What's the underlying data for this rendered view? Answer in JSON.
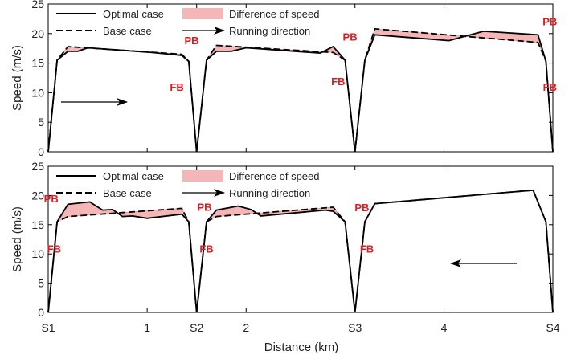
{
  "figure": {
    "xlabel": "Distance (km)",
    "x_ticks": [
      {
        "value": 0,
        "label": "S1"
      },
      {
        "value": 1,
        "label": "1"
      },
      {
        "value": 1.5,
        "label": "S2"
      },
      {
        "value": 2,
        "label": "2"
      },
      {
        "value": 3.1,
        "label": "S3"
      },
      {
        "value": 4,
        "label": "4"
      },
      {
        "value": 5.1,
        "label": "S4"
      }
    ],
    "colors": {
      "fill": "#f4b6b6",
      "fill_stroke": "#e99a9a",
      "label": "#e8181f",
      "line": "#000000"
    }
  },
  "chart_data": [
    {
      "type": "line",
      "ylabel": "Speed (m/s)",
      "xlim": [
        0,
        5.1
      ],
      "ylim": [
        0,
        25
      ],
      "y_ticks": [
        0,
        5,
        10,
        15,
        20,
        25
      ],
      "legend": {
        "position": "top",
        "optimal": "Optimal case",
        "base": "Base case",
        "difference": "Difference of speed",
        "direction": "Running direction"
      },
      "direction_arrow": "right",
      "series": [
        {
          "name": "Optimal case",
          "x": [
            0,
            0.09,
            0.2,
            0.3,
            0.4,
            1.05,
            1.35,
            1.42,
            1.5,
            1.6,
            1.7,
            1.85,
            2.0,
            2.75,
            2.88,
            3.0,
            3.1,
            3.2,
            3.3,
            4.05,
            4.2,
            4.4,
            4.95,
            5.03,
            5.1
          ],
          "y": [
            0,
            15.5,
            17,
            17,
            17.6,
            16.8,
            16.3,
            15.3,
            0,
            15.5,
            17,
            17,
            17.6,
            16.7,
            17.8,
            15.5,
            0,
            15.5,
            19.8,
            18.8,
            19.5,
            20.4,
            19.8,
            15.3,
            0
          ]
        },
        {
          "name": "Base case",
          "x": [
            0,
            0.09,
            0.2,
            1.35,
            1.42,
            1.5,
            1.6,
            1.7,
            2.88,
            3.0,
            3.1,
            3.2,
            3.3,
            4.95,
            5.03,
            5.1
          ],
          "y": [
            0,
            15.5,
            17.8,
            16.5,
            15.3,
            0,
            15.5,
            18.0,
            16.8,
            15.5,
            0,
            15.5,
            20.8,
            18.5,
            15.3,
            0
          ]
        }
      ],
      "labels": [
        {
          "text": "PB",
          "x": 1.45,
          "y": 18.2
        },
        {
          "text": "FB",
          "x": 1.3,
          "y": 10.3
        },
        {
          "text": "PB",
          "x": 3.05,
          "y": 18.8
        },
        {
          "text": "FB",
          "x": 2.93,
          "y": 11.3
        },
        {
          "text": "PB",
          "x": 5.07,
          "y": 21.4
        },
        {
          "text": "FB",
          "x": 5.07,
          "y": 10.3
        }
      ]
    },
    {
      "type": "line",
      "ylabel": "Speed (m/s)",
      "xlim": [
        0,
        5.1
      ],
      "ylim": [
        0,
        25
      ],
      "y_ticks": [
        0,
        5,
        10,
        15,
        20,
        25
      ],
      "legend": {
        "position": "top",
        "optimal": "Optimal case",
        "base": "Base case",
        "difference": "Difference of speed",
        "direction": "Running direction"
      },
      "direction_arrow": "left",
      "series": [
        {
          "name": "Optimal case",
          "x": [
            0,
            0.09,
            0.2,
            0.42,
            0.55,
            0.65,
            0.75,
            0.85,
            1.0,
            1.35,
            1.42,
            1.5,
            1.6,
            1.7,
            1.92,
            2.05,
            2.15,
            2.8,
            2.88,
            3.0,
            3.1,
            3.2,
            3.3,
            4.9,
            5.03,
            5.1
          ],
          "y": [
            0,
            15.5,
            18.5,
            18.9,
            17.5,
            17.6,
            16.4,
            16.5,
            16.1,
            16.8,
            15.5,
            0,
            15.5,
            17.5,
            18.2,
            17.6,
            16.5,
            17.5,
            17.3,
            15.5,
            0,
            15.5,
            18.6,
            20.9,
            15.5,
            0
          ]
        },
        {
          "name": "Base case",
          "x": [
            0,
            0.09,
            0.2,
            1.35,
            1.42,
            1.5,
            1.6,
            1.7,
            2.88,
            3.0,
            3.1,
            3.2,
            3.3,
            4.9,
            5.03,
            5.1
          ],
          "y": [
            0,
            15.5,
            16.4,
            17.8,
            15.5,
            0,
            15.5,
            16.4,
            18.0,
            15.5,
            0,
            15.5,
            18.6,
            20.9,
            15.5,
            0
          ]
        }
      ],
      "labels": [
        {
          "text": "PB",
          "x": 0.03,
          "y": 18.8
        },
        {
          "text": "FB",
          "x": 0.06,
          "y": 10.2
        },
        {
          "text": "PB",
          "x": 1.58,
          "y": 17.4
        },
        {
          "text": "FB",
          "x": 1.6,
          "y": 10.2
        },
        {
          "text": "PB",
          "x": 3.17,
          "y": 17.3
        },
        {
          "text": "FB",
          "x": 3.22,
          "y": 10.2
        }
      ]
    }
  ]
}
